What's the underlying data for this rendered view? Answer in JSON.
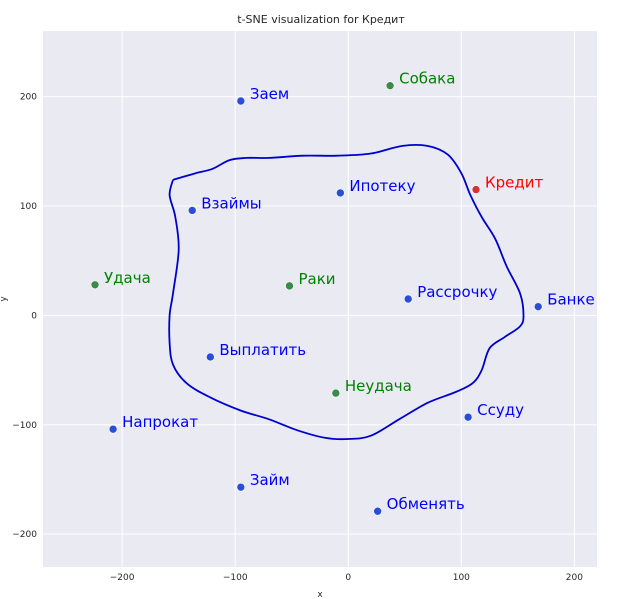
{
  "chart_data": {
    "type": "scatter",
    "title": "t-SNE visualization for Кредит",
    "xlabel": "x",
    "ylabel": "y",
    "xlim": [
      -270,
      220
    ],
    "ylim": [
      -230,
      260
    ],
    "xticks": [
      -200,
      -100,
      0,
      100,
      200
    ],
    "yticks": [
      -200,
      -100,
      0,
      100,
      200
    ],
    "grid": true,
    "background": "#eaeaf2",
    "points": [
      {
        "label": "Кредит",
        "x": 113,
        "y": 115,
        "color": "#d93030",
        "text_color": "#ff0000"
      },
      {
        "label": "Заем",
        "x": -95,
        "y": 196,
        "color": "#2a4fd6",
        "text_color": "#0000ff"
      },
      {
        "label": "Взаймы",
        "x": -138,
        "y": 96,
        "color": "#2a4fd6",
        "text_color": "#0000ff"
      },
      {
        "label": "Ипотеку",
        "x": -7,
        "y": 112,
        "color": "#2a4fd6",
        "text_color": "#0000ff"
      },
      {
        "label": "Рассрочку",
        "x": 53,
        "y": 15,
        "color": "#2a4fd6",
        "text_color": "#0000ff"
      },
      {
        "label": "Банке",
        "x": 168,
        "y": 8,
        "color": "#2a4fd6",
        "text_color": "#0000ff"
      },
      {
        "label": "Выплатить",
        "x": -122,
        "y": -38,
        "color": "#2a4fd6",
        "text_color": "#0000ff"
      },
      {
        "label": "Напрокат",
        "x": -208,
        "y": -104,
        "color": "#2a4fd6",
        "text_color": "#0000ff"
      },
      {
        "label": "Ссуду",
        "x": 106,
        "y": -93,
        "color": "#2a4fd6",
        "text_color": "#0000ff"
      },
      {
        "label": "Займ",
        "x": -95,
        "y": -157,
        "color": "#2a4fd6",
        "text_color": "#0000ff"
      },
      {
        "label": "Обменять",
        "x": 26,
        "y": -179,
        "color": "#2a4fd6",
        "text_color": "#0000ff"
      },
      {
        "label": "Собака",
        "x": 37,
        "y": 210,
        "color": "#3a8a4a",
        "text_color": "#008000"
      },
      {
        "label": "Удача",
        "x": -224,
        "y": 28,
        "color": "#3a8a4a",
        "text_color": "#008000"
      },
      {
        "label": "Раки",
        "x": -52,
        "y": 27,
        "color": "#3a8a4a",
        "text_color": "#008000"
      },
      {
        "label": "Неудача",
        "x": -11,
        "y": -71,
        "color": "#3a8a4a",
        "text_color": "#008000"
      }
    ],
    "boundary": {
      "color": "#0000cc",
      "points": [
        [
          -155,
          124
        ],
        [
          -145,
          127
        ],
        [
          -135,
          130
        ],
        [
          -120,
          134
        ],
        [
          -105,
          142
        ],
        [
          -90,
          144
        ],
        [
          -70,
          144
        ],
        [
          -40,
          146
        ],
        [
          -10,
          146
        ],
        [
          20,
          148
        ],
        [
          48,
          155
        ],
        [
          70,
          155
        ],
        [
          88,
          147
        ],
        [
          100,
          130
        ],
        [
          108,
          110
        ],
        [
          118,
          90
        ],
        [
          130,
          70
        ],
        [
          140,
          45
        ],
        [
          152,
          20
        ],
        [
          155,
          0
        ],
        [
          152,
          -10
        ],
        [
          138,
          -20
        ],
        [
          125,
          -30
        ],
        [
          118,
          -50
        ],
        [
          110,
          -62
        ],
        [
          95,
          -70
        ],
        [
          70,
          -80
        ],
        [
          45,
          -95
        ],
        [
          20,
          -110
        ],
        [
          0,
          -113
        ],
        [
          -20,
          -112
        ],
        [
          -45,
          -105
        ],
        [
          -70,
          -95
        ],
        [
          -95,
          -87
        ],
        [
          -122,
          -75
        ],
        [
          -143,
          -62
        ],
        [
          -155,
          -45
        ],
        [
          -158,
          -25
        ],
        [
          -158,
          0
        ],
        [
          -155,
          20
        ],
        [
          -150,
          60
        ],
        [
          -153,
          90
        ],
        [
          -158,
          110
        ],
        [
          -155,
          124
        ]
      ]
    }
  }
}
